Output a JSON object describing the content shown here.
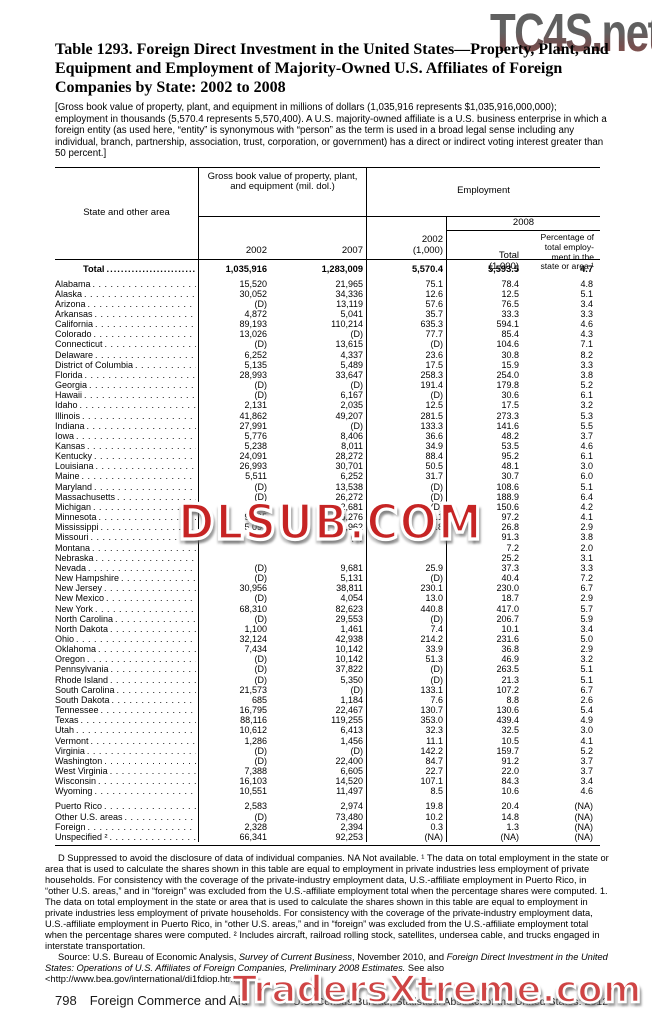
{
  "watermarks": {
    "top_right": "TC4S.net",
    "center": "DLSUB.COM",
    "bottom": "TradersXtreme.com"
  },
  "title": "Table 1293. Foreign Direct Investment in the United States—Property, Plant, and Equipment and Employment of Majority-Owned U.S. Affiliates of Foreign Companies by State: 2002 to 2008",
  "bracket_note": "[Gross book value of property, plant, and equipment in millions of dollars (1,035,916 represents $1,035,916,000,000); employment in thousands (5,570.4 represents 5,570,400). A U.S. majority-owned affiliate is a U.S. business enterprise in which a foreign entity (as used here, “entity” is synonymous with “person” as the term is used in a broad legal sense including any individual, branch, partnership, association, trust, corporation, or government) has a direct or indirect voting interest greater than 50 percent.]",
  "table": {
    "header": {
      "state": "State and other area",
      "ppe_group": "Gross book value of property, plant, and equipment (mil. dol.)",
      "employment_group": "Employment",
      "year_2002": "2002",
      "year_2007": "2007",
      "emp_2002": "2002\n(1,000)",
      "group_2008": "2008",
      "total_col": "Total\n(1,000)",
      "pct_col": "Percentage of\ntotal employ-\nment in the\nstate or area ¹"
    },
    "total_row": {
      "label": "Total",
      "values": [
        "1,035,916",
        "1,283,009",
        "5,570.4",
        "5,593.5",
        "4.7"
      ]
    },
    "rows": [
      {
        "label": "Alabama",
        "values": [
          "15,520",
          "21,965",
          "75.1",
          "78.4",
          "4.8"
        ]
      },
      {
        "label": "Alaska",
        "values": [
          "30,052",
          "34,336",
          "12.6",
          "12.5",
          "5.1"
        ]
      },
      {
        "label": "Arizona",
        "values": [
          "(D)",
          "13,119",
          "57.6",
          "76.5",
          "3.4"
        ]
      },
      {
        "label": "Arkansas",
        "values": [
          "4,872",
          "5,041",
          "35.7",
          "33.3",
          "3.3"
        ]
      },
      {
        "label": "California",
        "values": [
          "89,193",
          "110,214",
          "635.3",
          "594.1",
          "4.6"
        ]
      },
      {
        "label": "Colorado",
        "values": [
          "13,026",
          "(D)",
          "77.7",
          "85.4",
          "4.3"
        ]
      },
      {
        "label": "Connecticut",
        "values": [
          "(D)",
          "13,615",
          "(D)",
          "104.6",
          "7.1"
        ]
      },
      {
        "label": "Delaware",
        "values": [
          "6,252",
          "4,337",
          "23.6",
          "30.8",
          "8.2"
        ]
      },
      {
        "label": "District of Columbia",
        "values": [
          "5,135",
          "5,489",
          "17.5",
          "15.9",
          "3.3"
        ]
      },
      {
        "label": "Florida",
        "values": [
          "28,993",
          "33,647",
          "258.3",
          "254.0",
          "3.8"
        ]
      },
      {
        "label": "Georgia",
        "values": [
          "(D)",
          "(D)",
          "191.4",
          "179.8",
          "5.2"
        ]
      },
      {
        "label": "Hawaii",
        "values": [
          "(D)",
          "6,167",
          "(D)",
          "30.6",
          "6.1"
        ]
      },
      {
        "label": "Idaho",
        "values": [
          "2,131",
          "2,035",
          "12.5",
          "17.5",
          "3.2"
        ]
      },
      {
        "label": "Illinois",
        "values": [
          "41,862",
          "49,207",
          "281.5",
          "273.3",
          "5.3"
        ]
      },
      {
        "label": "Indiana",
        "values": [
          "27,991",
          "(D)",
          "133.3",
          "141.6",
          "5.5"
        ]
      },
      {
        "label": "Iowa",
        "values": [
          "5,776",
          "8,406",
          "36.6",
          "48.2",
          "3.7"
        ]
      },
      {
        "label": "Kansas",
        "values": [
          "5,238",
          "8,011",
          "34.9",
          "53.5",
          "4.6"
        ]
      },
      {
        "label": "Kentucky",
        "values": [
          "24,091",
          "28,272",
          "88.4",
          "95.2",
          "6.1"
        ]
      },
      {
        "label": "Louisiana",
        "values": [
          "26,993",
          "30,701",
          "50.5",
          "48.1",
          "3.0"
        ]
      },
      {
        "label": "Maine",
        "values": [
          "5,511",
          "6,252",
          "31.7",
          "30.7",
          "6.0"
        ]
      },
      {
        "label": "Maryland",
        "values": [
          "(D)",
          "13,538",
          "(D)",
          "108.6",
          "5.1"
        ]
      },
      {
        "label": "Massachusetts",
        "values": [
          "(D)",
          "26,272",
          "(D)",
          "188.9",
          "6.4"
        ]
      },
      {
        "label": "Michigan",
        "values": [
          "(D)",
          "22,681",
          "(D)",
          "150.6",
          "4.2"
        ]
      },
      {
        "label": "Minnesota",
        "values": [
          "9,805",
          "16,276",
          "88.1",
          "97.2",
          "4.1"
        ]
      },
      {
        "label": "Mississippi",
        "values": [
          "5,097",
          "10,962",
          "25.8",
          "26.8",
          "2.9"
        ]
      },
      {
        "label": "Missouri",
        "values": [
          "",
          "(D)",
          "",
          "91.3",
          "3.8"
        ]
      },
      {
        "label": "Montana",
        "values": [
          "",
          "",
          "",
          "7.2",
          "2.0"
        ]
      },
      {
        "label": "Nebraska",
        "values": [
          "",
          "",
          "",
          "25.2",
          "3.1"
        ]
      },
      {
        "label": "Nevada",
        "values": [
          "(D)",
          "9,681",
          "25.9",
          "37.3",
          "3.3"
        ]
      },
      {
        "label": "New Hampshire",
        "values": [
          "(D)",
          "5,131",
          "(D)",
          "40.4",
          "7.2"
        ]
      },
      {
        "label": "New Jersey",
        "values": [
          "30,956",
          "38,811",
          "230.1",
          "230.0",
          "6.7"
        ]
      },
      {
        "label": "New Mexico",
        "values": [
          "(D)",
          "4,054",
          "13.0",
          "18.7",
          "2.9"
        ]
      },
      {
        "label": "New York",
        "values": [
          "68,310",
          "82,623",
          "440.8",
          "417.0",
          "5.7"
        ]
      },
      {
        "label": "North Carolina",
        "values": [
          "(D)",
          "29,553",
          "(D)",
          "206.7",
          "5.9"
        ]
      },
      {
        "label": "North Dakota",
        "values": [
          "1,100",
          "1,461",
          "7.4",
          "10.1",
          "3.4"
        ]
      },
      {
        "label": "Ohio",
        "values": [
          "32,124",
          "42,938",
          "214.2",
          "231.6",
          "5.0"
        ]
      },
      {
        "label": "Oklahoma",
        "values": [
          "7,434",
          "10,142",
          "33.9",
          "36.8",
          "2.9"
        ]
      },
      {
        "label": "Oregon",
        "values": [
          "(D)",
          "10,142",
          "51.3",
          "46.9",
          "3.2"
        ]
      },
      {
        "label": "Pennsylvania",
        "values": [
          "(D)",
          "37,822",
          "(D)",
          "263.5",
          "5.1"
        ]
      },
      {
        "label": "Rhode Island",
        "values": [
          "(D)",
          "5,350",
          "(D)",
          "21.3",
          "5.1"
        ]
      },
      {
        "label": "South Carolina",
        "values": [
          "21,573",
          "(D)",
          "133.1",
          "107.2",
          "6.7"
        ]
      },
      {
        "label": "South Dakota",
        "values": [
          "685",
          "1,184",
          "7.6",
          "8.8",
          "2.6"
        ]
      },
      {
        "label": "Tennessee",
        "values": [
          "16,795",
          "22,467",
          "130.7",
          "130.6",
          "5.4"
        ]
      },
      {
        "label": "Texas",
        "values": [
          "88,116",
          "119,255",
          "353.0",
          "439.4",
          "4.9"
        ]
      },
      {
        "label": "Utah",
        "values": [
          "10,612",
          "6,413",
          "32.3",
          "32.5",
          "3.0"
        ]
      },
      {
        "label": "Vermont",
        "values": [
          "1,286",
          "1,456",
          "11.1",
          "10.5",
          "4.1"
        ]
      },
      {
        "label": "Virginia",
        "values": [
          "(D)",
          "(D)",
          "142.2",
          "159.7",
          "5.2"
        ]
      },
      {
        "label": "Washington",
        "values": [
          "(D)",
          "22,400",
          "84.7",
          "91.2",
          "3.7"
        ]
      },
      {
        "label": "West Virginia",
        "values": [
          "7,388",
          "6,605",
          "22.7",
          "22.0",
          "3.7"
        ]
      },
      {
        "label": "Wisconsin",
        "values": [
          "16,103",
          "14,520",
          "107.1",
          "84.3",
          "3.4"
        ]
      },
      {
        "label": "Wyoming",
        "values": [
          "10,551",
          "11,497",
          "8.5",
          "10.6",
          "4.6"
        ]
      },
      {
        "label": "Puerto Rico",
        "gap": true,
        "values": [
          "2,583",
          "2,974",
          "19.8",
          "20.4",
          "(NA)"
        ]
      },
      {
        "label": "Other U.S. areas",
        "values": [
          "(D)",
          "73,480",
          "10.2",
          "14.8",
          "(NA)"
        ]
      },
      {
        "label": "Foreign",
        "values": [
          "2,328",
          "2,394",
          "0.3",
          "1.3",
          "(NA)"
        ]
      },
      {
        "label": "Unspecified ²",
        "values": [
          "66,341",
          "92,253",
          "(NA)",
          "(NA)",
          "(NA)"
        ]
      }
    ]
  },
  "footnotes": "D Suppressed to avoid the disclosure of data of individual companies. NA Not available. ¹ The data on total employment in the state or area that is used to calculate the shares shown in this table are equal to employment in private industries less employment of private households. For consistency with the coverage of the private-industry employment data, U.S.-affiliate employment in Puerto Rico, in “other U.S. areas,” and in “foreign” was excluded from the U.S.-affiliate employment total when the percentage shares were computed. 1. The data on total employment in the state or area that is used to calculate the shares shown in this table are equal to employment in private industries less employment of private households. For consistency with the coverage of the private-industry employment data, U.S.-affiliate employment in Puerto Rico, in “other U.S. areas,” and in “foreign” was excluded from the U.S.-affiliate employment total when the percentage shares were computed. ² Includes aircraft, railroad rolling stock, satellites, undersea cable, and trucks engaged in interstate transportation.",
  "source": {
    "prefix": "Source: U.S. Bureau of Economic Analysis, ",
    "italic1": "Survey of Current Business",
    "mid": ", November 2010, and ",
    "italic2": "Foreign Direct Investment in the United States: Operations of U.S. Affiliates of Foreign Companies, Preliminary 2008 Estimates.",
    "suffix": "  See also <http://www.bea.gov/international/di1fdiop.htm>."
  },
  "footer": {
    "page": "798",
    "section": "Foreign Commerce and Aid",
    "bureau": "U.S. Census Bureau, Statistical Abstract of the United States: 2012"
  }
}
